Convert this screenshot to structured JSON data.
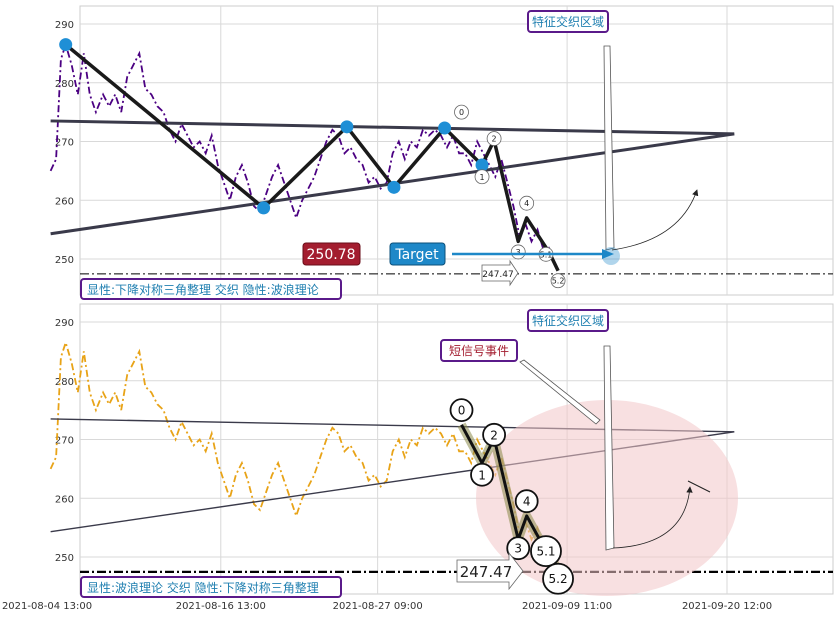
{
  "chart_data": [
    {
      "type": "line",
      "panel": "top",
      "ylim": [
        244.5,
        293
      ],
      "yticks": [
        250,
        260,
        270,
        280,
        290
      ],
      "grid": true,
      "series": [
        {
          "color": "#4b0082",
          "style": "dashdot",
          "points": [
            [
              "2021-08-04 19:00",
              265
            ],
            [
              "2021-08-05 04:00",
              267
            ],
            [
              "2021-08-05 12:00",
              284
            ],
            [
              "2021-08-05 20:00",
              286.5
            ],
            [
              "2021-08-06 06:00",
              283
            ],
            [
              "2021-08-06 16:00",
              278
            ],
            [
              "2021-08-07 02:00",
              285
            ],
            [
              "2021-08-07 12:00",
              278
            ],
            [
              "2021-08-07 22:00",
              275
            ],
            [
              "2021-08-08 10:00",
              278
            ],
            [
              "2021-08-08 20:00",
              276
            ],
            [
              "2021-08-09 06:00",
              278
            ],
            [
              "2021-08-09 16:00",
              275
            ],
            [
              "2021-08-10 02:00",
              281
            ],
            [
              "2021-08-10 12:00",
              283
            ],
            [
              "2021-08-10 22:00",
              285
            ],
            [
              "2021-08-11 08:00",
              279
            ],
            [
              "2021-08-11 18:00",
              278
            ],
            [
              "2021-08-12 04:00",
              276
            ],
            [
              "2021-08-12 14:00",
              275
            ],
            [
              "2021-08-13 00:00",
              272
            ],
            [
              "2021-08-13 10:00",
              270
            ],
            [
              "2021-08-13 20:00",
              273
            ],
            [
              "2021-08-14 06:00",
              271
            ],
            [
              "2021-08-14 16:00",
              269
            ],
            [
              "2021-08-15 02:00",
              270
            ],
            [
              "2021-08-15 12:00",
              268
            ],
            [
              "2021-08-15 22:00",
              271
            ],
            [
              "2021-08-16 08:00",
              266
            ],
            [
              "2021-08-16 18:00",
              263
            ],
            [
              "2021-08-17 04:00",
              260
            ],
            [
              "2021-08-17 14:00",
              264
            ],
            [
              "2021-08-18 00:00",
              266
            ],
            [
              "2021-08-18 10:00",
              263
            ],
            [
              "2021-08-18 20:00",
              259
            ],
            [
              "2021-08-19 06:00",
              258
            ],
            [
              "2021-08-19 16:00",
              261
            ],
            [
              "2021-08-20 02:00",
              264
            ],
            [
              "2021-08-20 12:00",
              266
            ],
            [
              "2021-08-20 22:00",
              263
            ],
            [
              "2021-08-21 08:00",
              260
            ],
            [
              "2021-08-21 18:00",
              257
            ],
            [
              "2021-08-22 04:00",
              260
            ],
            [
              "2021-08-22 14:00",
              262
            ],
            [
              "2021-08-23 00:00",
              264
            ],
            [
              "2021-08-23 10:00",
              267
            ],
            [
              "2021-08-23 20:00",
              270
            ],
            [
              "2021-08-24 06:00",
              272
            ],
            [
              "2021-08-24 16:00",
              271
            ],
            [
              "2021-08-25 02:00",
              268
            ],
            [
              "2021-08-25 12:00",
              269
            ],
            [
              "2021-08-25 22:00",
              267
            ],
            [
              "2021-08-26 08:00",
              266
            ],
            [
              "2021-08-26 18:00",
              263
            ],
            [
              "2021-08-27 04:00",
              264
            ],
            [
              "2021-08-27 14:00",
              262
            ],
            [
              "2021-08-28 00:00",
              263
            ],
            [
              "2021-08-28 10:00",
              268
            ],
            [
              "2021-08-28 20:00",
              270
            ],
            [
              "2021-08-29 06:00",
              267
            ],
            [
              "2021-08-29 16:00",
              270
            ],
            [
              "2021-08-30 02:00",
              269
            ],
            [
              "2021-08-30 12:00",
              272
            ],
            [
              "2021-08-30 22:00",
              271
            ],
            [
              "2021-08-31 08:00",
              272
            ],
            [
              "2021-08-31 18:00",
              271
            ],
            [
              "2021-09-01 04:00",
              269
            ],
            [
              "2021-09-01 14:00",
              271
            ],
            [
              "2021-09-02 00:00",
              268
            ],
            [
              "2021-09-02 10:00",
              268
            ],
            [
              "2021-09-02 20:00",
              266
            ],
            [
              "2021-09-03 06:00",
              270
            ],
            [
              "2021-09-03 16:00",
              268
            ],
            [
              "2021-09-04 02:00",
              266
            ],
            [
              "2021-09-04 12:00",
              264
            ],
            [
              "2021-09-04 22:00",
              267
            ],
            [
              "2021-09-05 08:00",
              263
            ],
            [
              "2021-09-05 18:00",
              259
            ],
            [
              "2021-09-06 04:00",
              254
            ],
            [
              "2021-09-06 14:00",
              256
            ],
            [
              "2021-09-07 00:00",
              253
            ],
            [
              "2021-09-07 10:00",
              255
            ],
            [
              "2021-09-07 20:00",
              251.5
            ],
            [
              "2021-09-08 06:00",
              252
            ]
          ]
        }
      ],
      "pivots": [
        [
          "2021-08-05 20:00",
          286.5
        ],
        [
          "2021-08-19 12:00",
          258.7
        ],
        [
          "2021-08-25 06:00",
          272.5
        ],
        [
          "2021-08-28 12:00",
          262.2
        ],
        [
          "2021-09-01 00:00",
          272.3
        ],
        [
          "2021-09-03 14:00",
          266
        ]
      ],
      "pattern_path": [
        [
          "2021-08-05 20:00",
          286.5
        ],
        [
          "2021-08-19 12:00",
          258.7
        ],
        [
          "2021-08-25 06:00",
          272.5
        ],
        [
          "2021-08-28 12:00",
          262.2
        ],
        [
          "2021-09-01 00:00",
          272.3
        ],
        [
          "2021-09-03 14:00",
          266
        ],
        [
          "2021-09-04 10:00",
          270.2
        ],
        [
          "2021-09-06 02:00",
          253
        ],
        [
          "2021-09-06 16:00",
          257
        ],
        [
          "2021-09-08 06:00",
          251
        ],
        [
          "2021-09-08 20:00",
          248
        ]
      ],
      "triangle_lines": [
        [
          [
            "2021-08-04 19:00",
            273.5
          ],
          [
            "2021-09-21 00:00",
            271.3
          ]
        ],
        [
          [
            "2021-08-04 19:00",
            254.3
          ],
          [
            "2021-09-21 00:00",
            271.3
          ]
        ]
      ],
      "wave_labels": [
        {
          "label": "0",
          "x": "2021-09-02 04:00",
          "y": 275
        },
        {
          "label": "1",
          "x": "2021-09-03 14:00",
          "y": 264
        },
        {
          "label": "2",
          "x": "2021-09-04 10:00",
          "y": 270.5
        },
        {
          "label": "3",
          "x": "2021-09-06 02:00",
          "y": 251.2
        },
        {
          "label": "4",
          "x": "2021-09-06 16:00",
          "y": 259.5
        },
        {
          "label": "5.1",
          "x": "2021-09-08 00:00",
          "y": 250.8
        },
        {
          "label": "5.2",
          "x": "2021-09-08 20:00",
          "y": 246.3
        }
      ],
      "horizontal_line": 247.47,
      "annotations": {
        "zone_label": "特征交织区域",
        "price_box": "250.78",
        "target_box": "Target",
        "level_label": "247.47",
        "caption": "显性:下降对称三角整理 交织 隐性:波浪理论"
      }
    },
    {
      "type": "line",
      "panel": "bottom",
      "ylim": [
        244.5,
        293
      ],
      "yticks": [
        250,
        260,
        270,
        280,
        290
      ],
      "grid": true,
      "series": [
        {
          "color": "#e8a317",
          "style": "dashdot",
          "same_data_as_top": true
        }
      ],
      "wave_path": [
        [
          "2021-09-02 04:00",
          272.5
        ],
        [
          "2021-09-03 14:00",
          266
        ],
        [
          "2021-09-04 10:00",
          270.2
        ],
        [
          "2021-09-06 02:00",
          253
        ],
        [
          "2021-09-06 16:00",
          257
        ],
        [
          "2021-09-08 00:00",
          251
        ],
        [
          "2021-09-08 20:00",
          248
        ]
      ],
      "triangle_lines": [
        [
          [
            "2021-08-04 19:00",
            273.5
          ],
          [
            "2021-09-21 00:00",
            271.3
          ]
        ],
        [
          [
            "2021-08-04 19:00",
            254.3
          ],
          [
            "2021-09-21 00:00",
            271.3
          ]
        ]
      ],
      "wave_labels": [
        {
          "label": "0",
          "x": "2021-09-02 04:00",
          "y": 275
        },
        {
          "label": "1",
          "x": "2021-09-03 14:00",
          "y": 264
        },
        {
          "label": "2",
          "x": "2021-09-04 10:00",
          "y": 270.8
        },
        {
          "label": "3",
          "x": "2021-09-06 02:00",
          "y": 251.5
        },
        {
          "label": "4",
          "x": "2021-09-06 16:00",
          "y": 259.5
        },
        {
          "label": "5.1",
          "x": "2021-09-08 00:00",
          "y": 251
        },
        {
          "label": "5.2",
          "x": "2021-09-08 20:00",
          "y": 246.3
        }
      ],
      "horizontal_line": 247.47,
      "annotations": {
        "zone_label": "特征交织区域",
        "event_label": "短信号事件",
        "level_label": "247.47",
        "caption": "显性:波浪理论 交织 隐性:下降对称三角整理"
      },
      "xticks": [
        "2021-08-04 13:00",
        "2021-08-16 13:00",
        "2021-08-27 09:00",
        "2021-09-09 11:00",
        "2021-09-20 12:00"
      ]
    }
  ]
}
